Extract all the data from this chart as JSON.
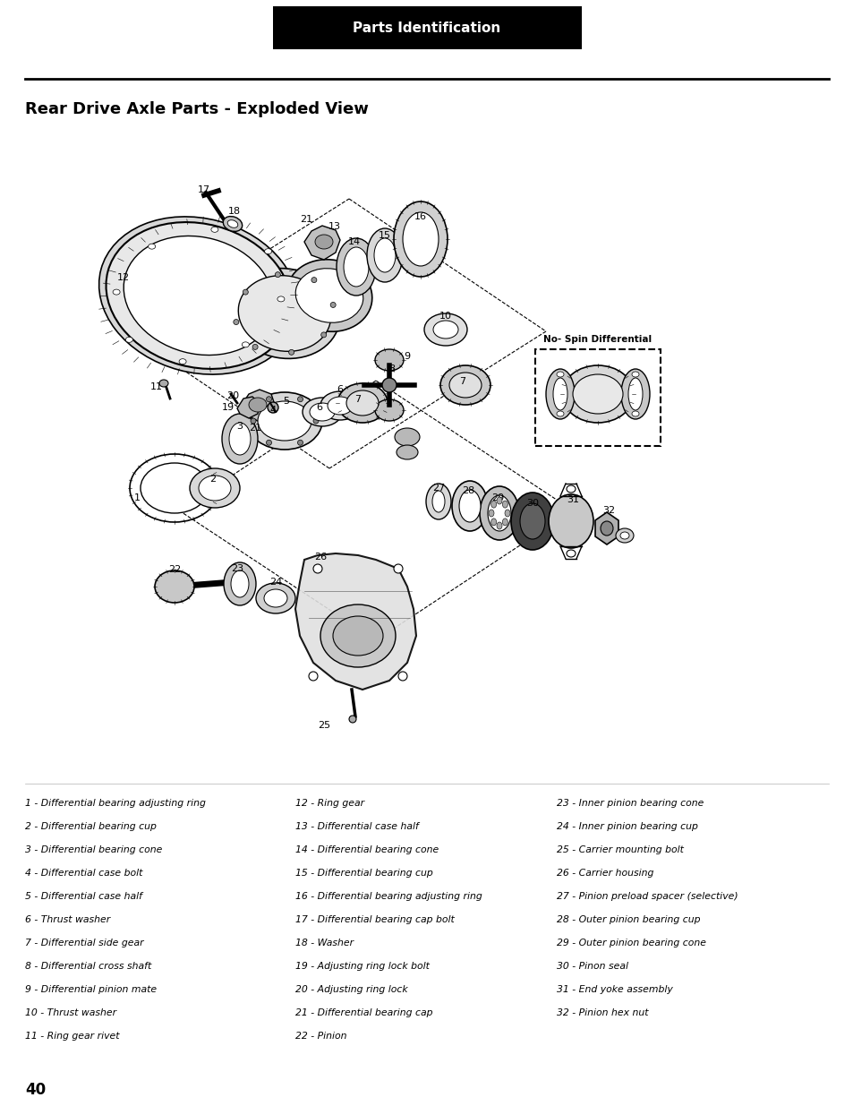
{
  "header_text": "Parts Identification",
  "header_bg": "#000000",
  "header_text_color": "#ffffff",
  "title": "Rear Drive Axle Parts - Exploded View",
  "page_number": "40",
  "parts_col1": [
    "1 - Differential bearing adjusting ring",
    "2 - Differential bearing cup",
    "3 - Differential bearing cone",
    "4 - Differential case bolt",
    "5 - Differential case half",
    "6 - Thrust washer",
    "7 - Differential side gear",
    "8 - Differential cross shaft",
    "9 - Differential pinion mate",
    "10 - Thrust washer",
    "11 - Ring gear rivet"
  ],
  "parts_col2": [
    "12 - Ring gear",
    "13 - Differential case half",
    "14 - Differential bearing cone",
    "15 - Differential bearing cup",
    "16 - Differential bearing adjusting ring",
    "17 - Differential bearing cap bolt",
    "18 - Washer",
    "19 - Adjusting ring lock bolt",
    "20 - Adjusting ring lock",
    "21 - Differential bearing cap",
    "22 - Pinion"
  ],
  "parts_col3": [
    "23 - Inner pinion bearing cone",
    "24 - Inner pinion bearing cup",
    "25 - Carrier mounting bolt",
    "26 - Carrier housing",
    "27 - Pinion preload spacer (selective)",
    "28 - Outer pinion bearing cup",
    "29 - Outer pinion bearing cone",
    "30 - Pinon seal",
    "31 - End yoke assembly",
    "32 - Pinion hex nut"
  ],
  "bg_color": "#ffffff"
}
